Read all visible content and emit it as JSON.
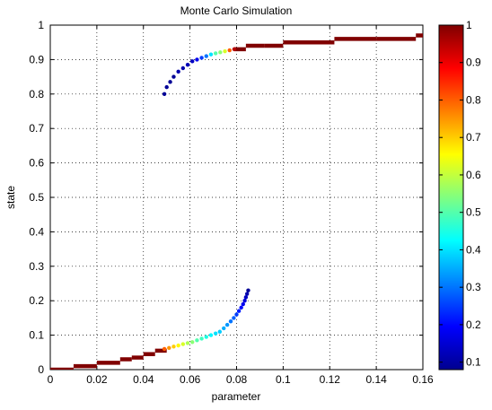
{
  "chart_data": [
    {
      "type": "scatter",
      "title": "Monte Carlo Simulation",
      "xlabel": "parameter",
      "ylabel": "state",
      "xlim": [
        0,
        0.16
      ],
      "ylim": [
        0,
        1
      ],
      "xticks": [
        0,
        0.02,
        0.04,
        0.06,
        0.08,
        0.1,
        0.12,
        0.14,
        0.16
      ],
      "xtick_labels": [
        "0",
        "0.02",
        "0.04",
        "0.06",
        "0.08",
        "0.1",
        "0.12",
        "0.14",
        "0.16"
      ],
      "yticks": [
        0,
        0.1,
        0.2,
        0.3,
        0.4,
        0.5,
        0.6,
        0.7,
        0.8,
        0.9,
        1
      ],
      "ytick_labels": [
        "0",
        "0.1",
        "0.2",
        "0.3",
        "0.4",
        "0.5",
        "0.6",
        "0.7",
        "0.8",
        "0.9",
        "1"
      ],
      "grid": true,
      "grid_style": "dotted",
      "colormap": "jet",
      "series": [
        {
          "points": [
            [
              0.085,
              0.23
            ],
            [
              0.0845,
              0.22
            ],
            [
              0.084,
              0.21
            ],
            [
              0.0835,
              0.2
            ],
            [
              0.0828,
              0.19
            ],
            [
              0.082,
              0.18
            ],
            [
              0.081,
              0.17
            ],
            [
              0.08,
              0.16
            ],
            [
              0.0788,
              0.15
            ],
            [
              0.0775,
              0.14
            ],
            [
              0.076,
              0.13
            ],
            [
              0.0745,
              0.12
            ],
            [
              0.0728,
              0.11
            ],
            [
              0.071,
              0.105
            ],
            [
              0.069,
              0.1
            ],
            [
              0.067,
              0.095
            ],
            [
              0.065,
              0.09
            ],
            [
              0.063,
              0.085
            ],
            [
              0.061,
              0.08
            ],
            [
              0.059,
              0.077
            ],
            [
              0.057,
              0.074
            ],
            [
              0.055,
              0.07
            ],
            [
              0.053,
              0.067
            ],
            [
              0.051,
              0.063
            ],
            [
              0.049,
              0.06
            ],
            [
              0.049,
              0.8
            ],
            [
              0.05,
              0.82
            ],
            [
              0.0515,
              0.835
            ],
            [
              0.053,
              0.85
            ],
            [
              0.055,
              0.865
            ],
            [
              0.057,
              0.875
            ],
            [
              0.059,
              0.885
            ],
            [
              0.061,
              0.895
            ],
            [
              0.063,
              0.9
            ],
            [
              0.065,
              0.905
            ],
            [
              0.067,
              0.91
            ],
            [
              0.069,
              0.915
            ],
            [
              0.071,
              0.918
            ],
            [
              0.073,
              0.921
            ],
            [
              0.075,
              0.924
            ],
            [
              0.077,
              0.927
            ],
            [
              0.079,
              0.93
            ]
          ],
          "colors": [
            0.1,
            0.12,
            0.14,
            0.16,
            0.18,
            0.2,
            0.22,
            0.25,
            0.28,
            0.3,
            0.33,
            0.35,
            0.38,
            0.4,
            0.42,
            0.45,
            0.48,
            0.5,
            0.55,
            0.58,
            0.62,
            0.66,
            0.7,
            0.75,
            0.8,
            0.1,
            0.1,
            0.1,
            0.1,
            0.12,
            0.12,
            0.13,
            0.14,
            0.18,
            0.25,
            0.3,
            0.4,
            0.5,
            0.55,
            0.62,
            0.8,
            0.95
          ]
        }
      ],
      "step_segments": [
        [
          0.0,
          0.01,
          0.0
        ],
        [
          0.01,
          0.02,
          0.01
        ],
        [
          0.02,
          0.03,
          0.02
        ],
        [
          0.03,
          0.035,
          0.03
        ],
        [
          0.035,
          0.04,
          0.035
        ],
        [
          0.04,
          0.045,
          0.045
        ],
        [
          0.045,
          0.05,
          0.055
        ],
        [
          0.079,
          0.084,
          0.93
        ],
        [
          0.084,
          0.092,
          0.94
        ],
        [
          0.092,
          0.1,
          0.94
        ],
        [
          0.1,
          0.112,
          0.95
        ],
        [
          0.112,
          0.122,
          0.95
        ],
        [
          0.122,
          0.14,
          0.96
        ],
        [
          0.14,
          0.157,
          0.96
        ],
        [
          0.157,
          0.16,
          0.97
        ]
      ],
      "step_color": 1.0,
      "colorbar": {
        "min": 0.08,
        "max": 1.0,
        "ticks": [
          0.1,
          0.2,
          0.3,
          0.4,
          0.5,
          0.6,
          0.7,
          0.8,
          0.9,
          1
        ],
        "tick_labels": [
          "0.1",
          "0.2",
          "0.3",
          "0.4",
          "0.5",
          "0.6",
          "0.7",
          "0.8",
          "0.9",
          "1"
        ]
      }
    }
  ]
}
